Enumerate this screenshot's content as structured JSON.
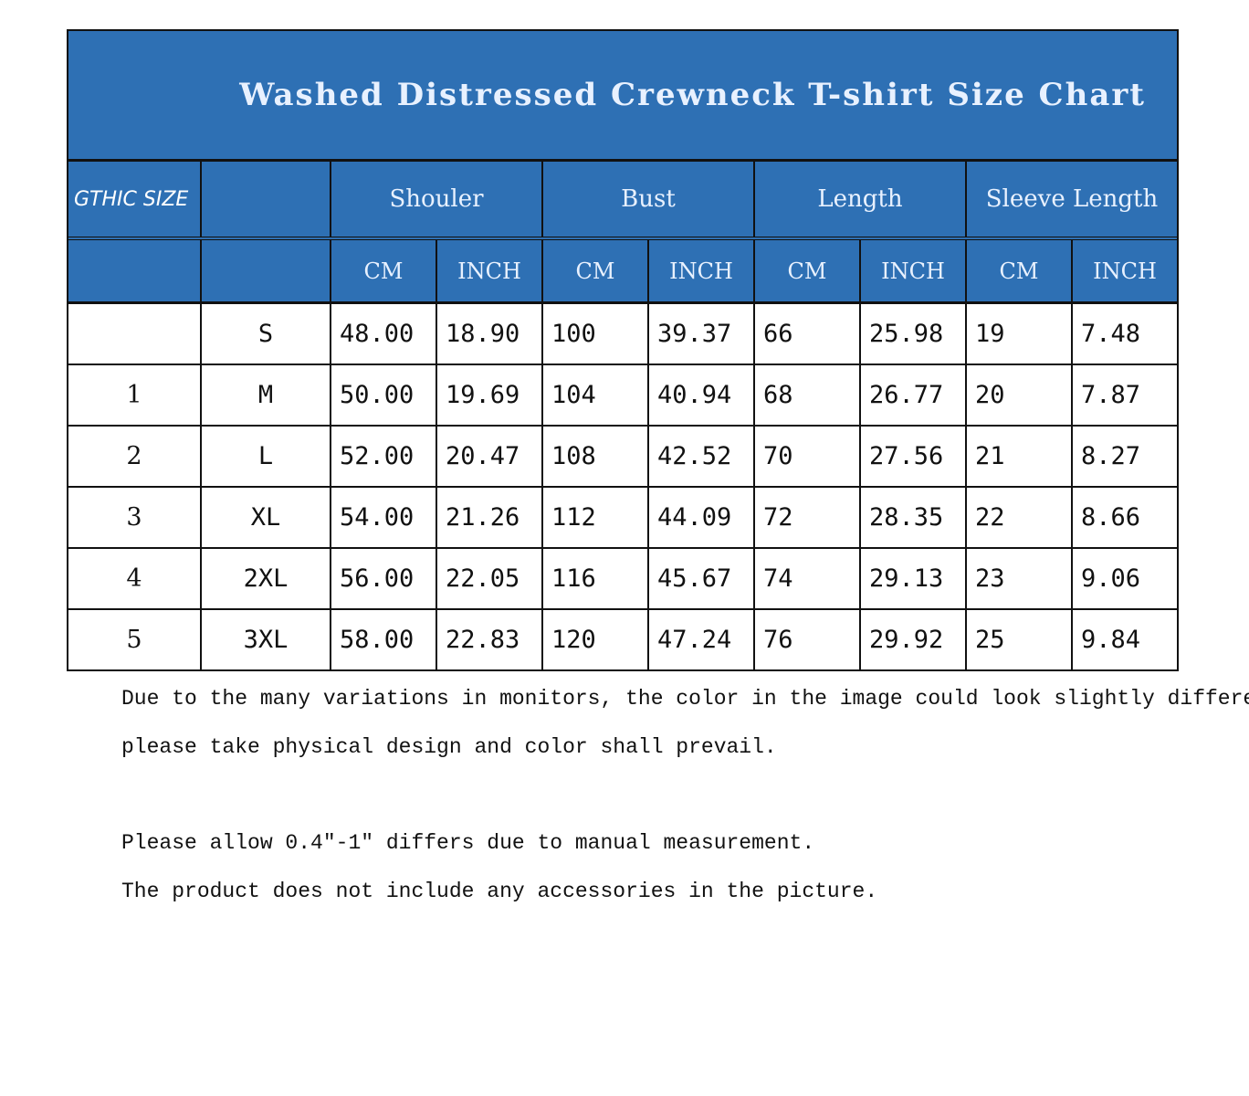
{
  "title": "Washed Distressed Crewneck T-shirt Size Chart",
  "header": {
    "brand_label": "GTHIC SIZE",
    "groups": [
      "Shouler",
      "Bust",
      "Length",
      "Sleeve Length"
    ],
    "units": [
      "CM",
      "INCH",
      "CM",
      "INCH",
      "CM",
      "INCH",
      "CM",
      "INCH"
    ]
  },
  "rows": [
    {
      "idx": "",
      "size": "S",
      "values": [
        "48.00",
        "18.90",
        "100",
        "39.37",
        "66",
        "25.98",
        "19",
        "7.48"
      ]
    },
    {
      "idx": "1",
      "size": "M",
      "values": [
        "50.00",
        "19.69",
        "104",
        "40.94",
        "68",
        "26.77",
        "20",
        "7.87"
      ]
    },
    {
      "idx": "2",
      "size": "L",
      "values": [
        "52.00",
        "20.47",
        "108",
        "42.52",
        "70",
        "27.56",
        "21",
        "8.27"
      ]
    },
    {
      "idx": "3",
      "size": "XL",
      "values": [
        "54.00",
        "21.26",
        "112",
        "44.09",
        "72",
        "28.35",
        "22",
        "8.66"
      ]
    },
    {
      "idx": "4",
      "size": "2XL",
      "values": [
        "56.00",
        "22.05",
        "116",
        "45.67",
        "74",
        "29.13",
        "23",
        "9.06"
      ]
    },
    {
      "idx": "5",
      "size": "3XL",
      "values": [
        "58.00",
        "22.83",
        "120",
        "47.24",
        "76",
        "29.92",
        "25",
        "9.84"
      ]
    }
  ],
  "notes": [
    "Due to the many variations in monitors, the color in the image could look slightly different,",
    " please take physical design and color shall prevail.",
    "Please allow 0.4\"-1\" differs due to manual measurement.",
    "The product does not include any accessories in the picture."
  ],
  "colors": {
    "header_bg": "#2e70b4",
    "header_text": "#e8f1ff",
    "border": "#111111"
  }
}
